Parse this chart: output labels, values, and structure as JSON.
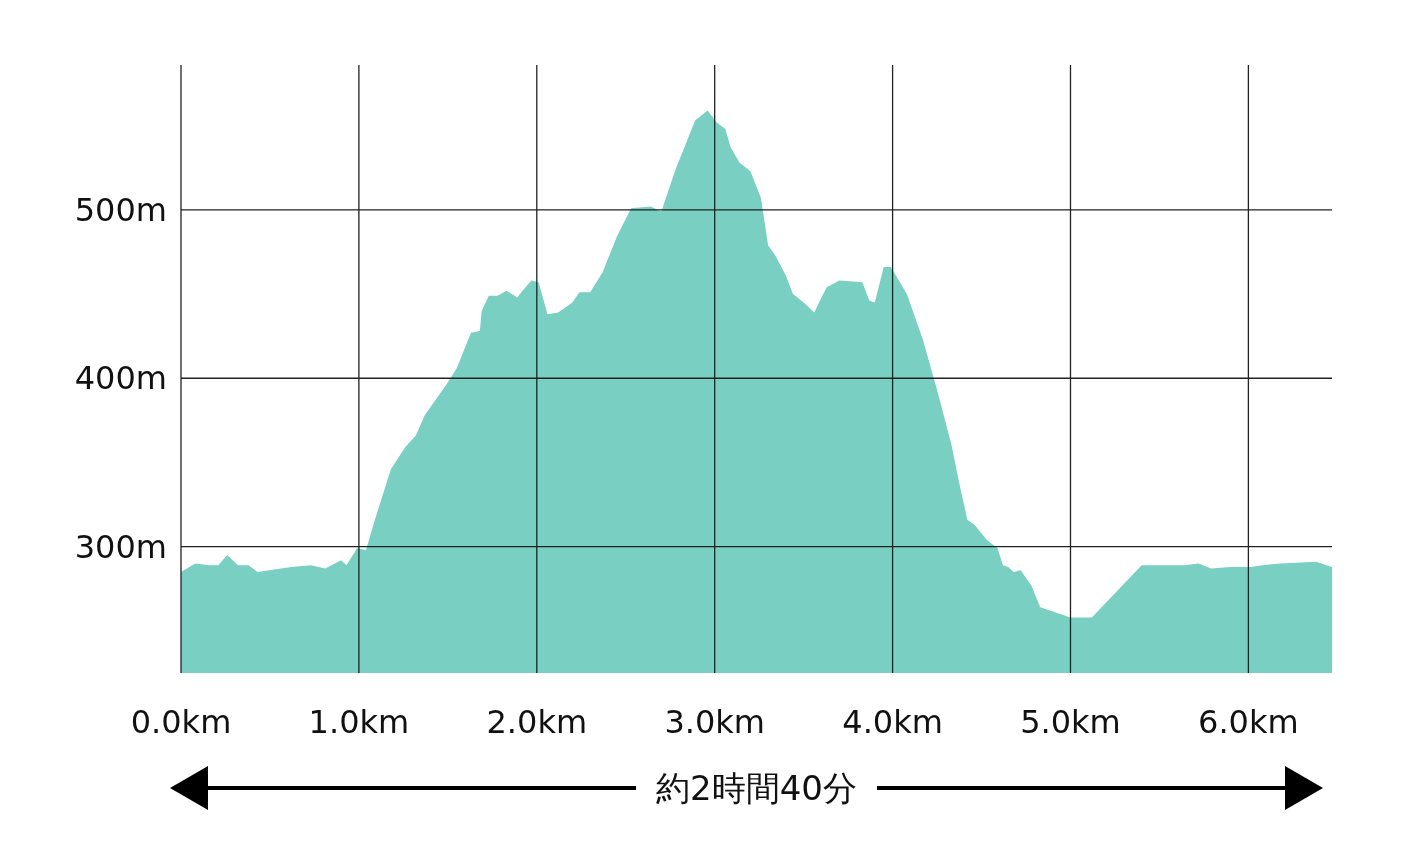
{
  "chart_data": {
    "type": "area",
    "color": "#79cfc1",
    "x": [
      0,
      0.08,
      0.16,
      0.21,
      0.26,
      0.32,
      0.38,
      0.43,
      0.62,
      0.73,
      0.81,
      0.9,
      0.93,
      0.99,
      1.04,
      1.09,
      1.18,
      1.26,
      1.32,
      1.37,
      1.49,
      1.55,
      1.63,
      1.68,
      1.69,
      1.73,
      1.78,
      1.83,
      1.89,
      1.92,
      1.97,
      2.01,
      2.06,
      2.12,
      2.2,
      2.24,
      2.3,
      2.37,
      2.45,
      2.53,
      2.64,
      2.7,
      2.78,
      2.89,
      2.96,
      3.01,
      3.06,
      3.09,
      3.14,
      3.2,
      3.26,
      3.3,
      3.34,
      3.4,
      3.44,
      3.5,
      3.56,
      3.6,
      3.63,
      3.7,
      3.83,
      3.87,
      3.9,
      3.95,
      3.99,
      4.08,
      4.17,
      4.25,
      4.33,
      4.37,
      4.42,
      4.46,
      4.53,
      4.59,
      4.62,
      4.65,
      4.68,
      4.72,
      4.78,
      4.83,
      5.0,
      5.12,
      5.4,
      5.64,
      5.72,
      5.79,
      5.9,
      6.01,
      6.08,
      6.18,
      6.38,
      6.47
    ],
    "values": [
      285,
      290,
      289,
      289,
      295,
      289,
      289,
      285,
      288,
      289,
      287,
      292,
      289,
      299,
      298,
      316,
      346,
      359,
      366,
      378,
      396,
      406,
      427,
      428,
      440,
      449,
      449,
      452,
      448,
      452,
      458,
      457,
      438,
      439,
      445,
      451,
      451,
      463,
      484,
      501,
      502,
      499,
      524,
      553,
      559,
      552,
      548,
      537,
      528,
      523,
      507,
      479,
      473,
      461,
      450,
      445,
      439,
      448,
      454,
      458,
      457,
      446,
      445,
      466,
      466,
      450,
      423,
      393,
      361,
      340,
      316,
      313,
      304,
      299,
      289,
      288,
      285,
      286,
      277,
      264,
      258,
      258,
      289,
      289,
      290,
      287,
      288,
      288,
      289,
      290,
      291,
      288
    ],
    "xlim": [
      0,
      6.47
    ],
    "ylim": [
      225,
      586
    ],
    "xticks": [
      {
        "value": 0,
        "label": "0.0km"
      },
      {
        "value": 1,
        "label": "1.0km"
      },
      {
        "value": 2,
        "label": "2.0km"
      },
      {
        "value": 3,
        "label": "3.0km"
      },
      {
        "value": 4,
        "label": "4.0km"
      },
      {
        "value": 5,
        "label": "5.0km"
      },
      {
        "value": 6,
        "label": "6.0km"
      }
    ],
    "yticks": [
      {
        "value": 300,
        "label": "300m"
      },
      {
        "value": 400,
        "label": "400m"
      },
      {
        "value": 500,
        "label": "500m"
      }
    ],
    "grid": true,
    "annotations": [
      "約2時間40分"
    ]
  }
}
